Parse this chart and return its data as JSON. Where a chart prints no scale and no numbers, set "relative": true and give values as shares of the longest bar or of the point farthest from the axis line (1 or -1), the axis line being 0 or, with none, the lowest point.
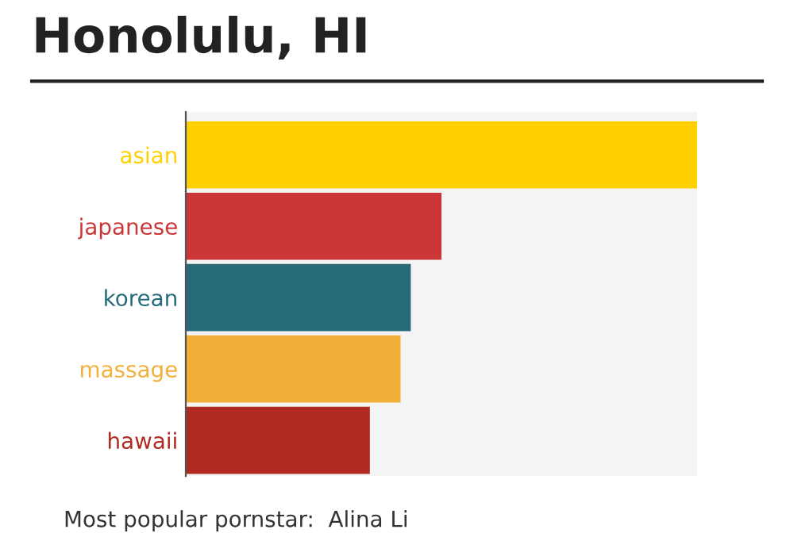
{
  "chart_data": {
    "type": "bar",
    "orientation": "horizontal",
    "relative": true,
    "title": "Honolulu, HI",
    "categories": [
      "asian",
      "japanese",
      "korean",
      "massage",
      "hawaii"
    ],
    "values": [
      1,
      0.5,
      0.44,
      0.42,
      0.36
    ],
    "colors": [
      "#ffd000",
      "#cc3636",
      "#276b7a",
      "#f2b03a",
      "#b02a22"
    ],
    "annotations": [
      "Most popular pornstar:  Alina Li"
    ]
  }
}
